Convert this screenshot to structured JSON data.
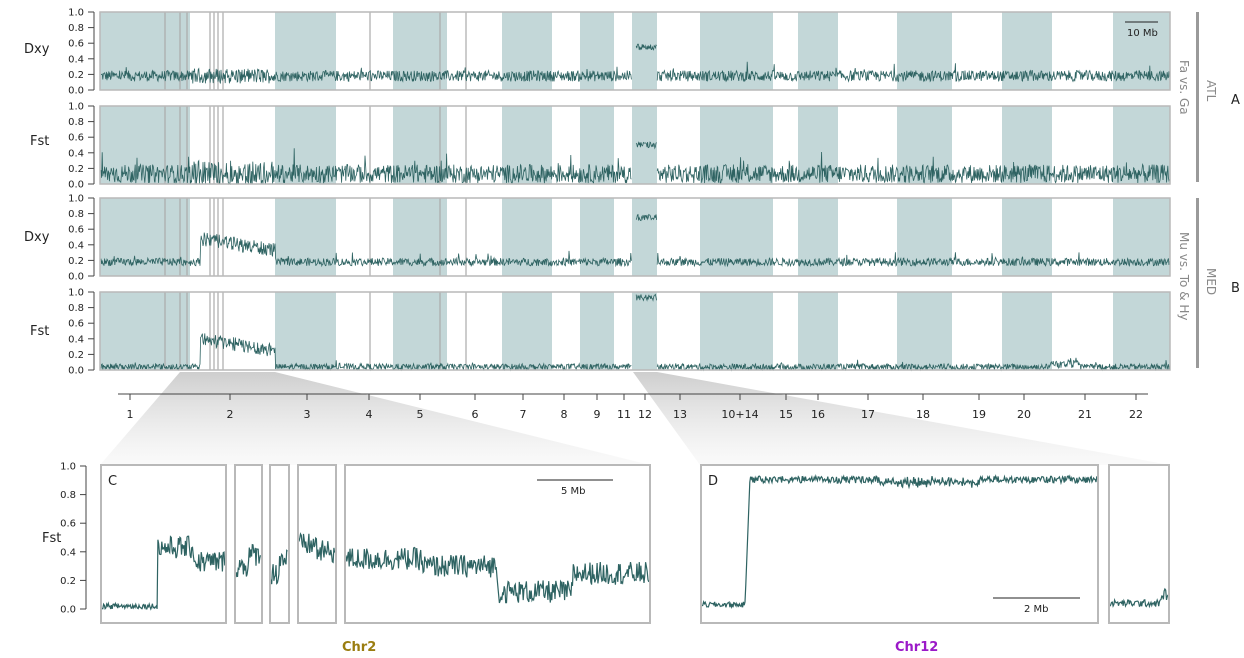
{
  "chart_data": [
    {
      "type": "line",
      "panel": "A",
      "group": "ATL",
      "comparison": "Fa vs. Ga",
      "metric": "Dxy",
      "ylim": [
        0,
        1
      ],
      "yticks": [
        "1.0",
        "0.8",
        "0.6",
        "0.4",
        "0.2",
        "0.0"
      ],
      "profile": {
        "baseline": 0.18,
        "noise": 0.07,
        "chr2_peak": 0.2,
        "chr12_peak": 0.55
      },
      "scale_bar": "10 Mb"
    },
    {
      "type": "line",
      "panel": "A",
      "group": "ATL",
      "comparison": "Fa vs. Ga",
      "metric": "Fst",
      "ylim": [
        0,
        1
      ],
      "yticks": [
        "1.0",
        "0.8",
        "0.6",
        "0.4",
        "0.2",
        "0.0"
      ],
      "profile": {
        "baseline": 0.13,
        "noise": 0.12,
        "chr2_peak": 0.18,
        "chr12_peak": 0.5
      }
    },
    {
      "type": "line",
      "panel": "B",
      "group": "MED",
      "comparison": "Mu vs. To & Hy",
      "metric": "Dxy",
      "ylim": [
        0,
        1
      ],
      "yticks": [
        "1.0",
        "0.8",
        "0.6",
        "0.4",
        "0.2",
        "0.0"
      ],
      "profile": {
        "baseline": 0.18,
        "noise": 0.05,
        "chr2_peak": 0.48,
        "chr12_peak": 0.75
      }
    },
    {
      "type": "line",
      "panel": "B",
      "group": "MED",
      "comparison": "Mu vs. To & Hy",
      "metric": "Fst",
      "ylim": [
        0,
        1
      ],
      "yticks": [
        "1.0",
        "0.8",
        "0.6",
        "0.4",
        "0.2",
        "0.0"
      ],
      "profile": {
        "baseline": 0.04,
        "noise": 0.04,
        "chr2_peak": 0.4,
        "chr12_peak": 0.93
      }
    },
    {
      "type": "line",
      "panel": "C",
      "chromosome": "Chr2",
      "ylabel": "Fst",
      "ylim": [
        0,
        1
      ],
      "yticks": [
        "1.0",
        "0.8",
        "0.6",
        "0.4",
        "0.2",
        "0.0"
      ],
      "scale_bar": "5 Mb",
      "segments": [
        {
          "levels": [
            0.02,
            0.45,
            0.3
          ]
        },
        {
          "levels": [
            0.3,
            0.38
          ]
        },
        {
          "levels": [
            0.25,
            0.35
          ]
        },
        {
          "levels": [
            0.45,
            0.4
          ]
        },
        {
          "levels": [
            0.35,
            0.3,
            0.12,
            0.25
          ]
        }
      ]
    },
    {
      "type": "line",
      "panel": "D",
      "chromosome": "Chr12",
      "ylim": [
        0,
        1
      ],
      "scale_bar": "2 Mb",
      "segments": [
        {
          "levels": [
            0.03,
            0.93
          ]
        },
        {
          "levels": [
            0.04,
            0.1
          ]
        }
      ]
    }
  ],
  "chromosomes": [
    "1",
    "2",
    "3",
    "4",
    "5",
    "6",
    "7",
    "8",
    "9",
    "11",
    "12",
    "13",
    "10+14",
    "15",
    "16",
    "17",
    "18",
    "19",
    "20",
    "21",
    "22"
  ],
  "labels": {
    "dxy": "Dxy",
    "fst": "Fst",
    "atl": "ATL",
    "atl_comparison": "Fa vs. Ga",
    "med": "MED",
    "med_comparison": "Mu vs. To & Hy",
    "panel_a": "A",
    "panel_b": "B",
    "panel_c": "C",
    "panel_d": "D",
    "chr2": "Chr2",
    "chr12": "Chr12",
    "scale_top": "10 Mb",
    "scale_c": "5 Mb",
    "scale_d": "2 Mb"
  },
  "colors": {
    "line": "#2e6362",
    "band": "#c3d7d8",
    "frame": "#b9b9b9",
    "gap": "#aaaaaa",
    "group_bar": "#9a9a9a",
    "chr2_label": "#9a7d10",
    "chr12_label": "#9b19c8"
  }
}
